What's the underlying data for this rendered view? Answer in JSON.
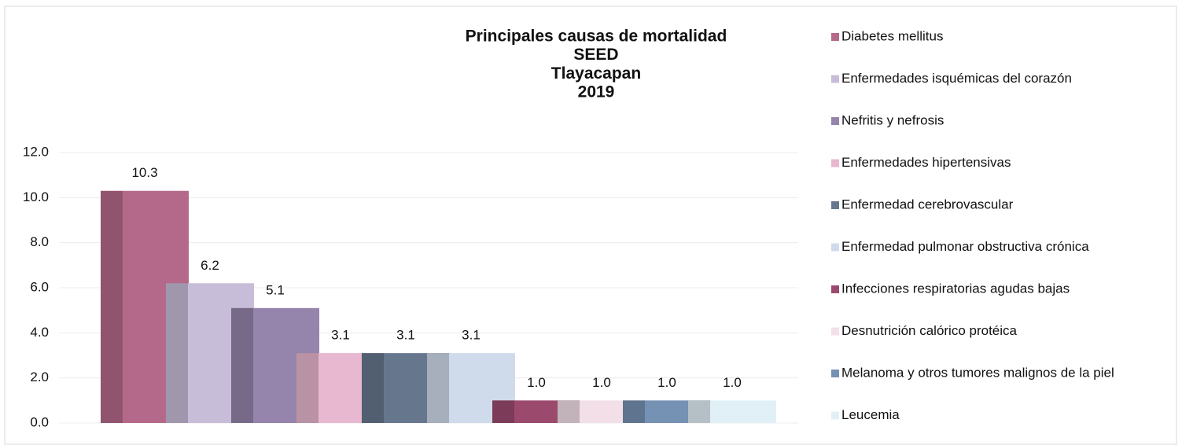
{
  "chart_data": {
    "type": "bar",
    "title": [
      "Principales causas de mortalidad",
      "SEED",
      "Tlayacapan",
      "2019"
    ],
    "series": [
      {
        "name": "Diabetes mellitus",
        "color": "#b5698a",
        "values": [
          10.3
        ],
        "value_labels": [
          "10.3"
        ]
      },
      {
        "name": "Enfermedades isquémicas del corazón",
        "color": "#c8bdd8",
        "values": [
          6.2
        ],
        "value_labels": [
          "6.2"
        ]
      },
      {
        "name": "Nefritis y nefrosis",
        "color": "#9584ab",
        "values": [
          5.1
        ],
        "value_labels": [
          "5.1"
        ]
      },
      {
        "name": "Enfermedades hipertensivas",
        "color": "#e8b7d0",
        "values": [
          3.1
        ],
        "value_labels": [
          "3.1"
        ]
      },
      {
        "name": "Enfermedad cerebrovascular",
        "color": "#66778d",
        "values": [
          3.1
        ],
        "value_labels": [
          "3.1"
        ]
      },
      {
        "name": "Enfermedad pulmonar obstructiva crónica",
        "color": "#cfdbea",
        "values": [
          3.1
        ],
        "value_labels": [
          "3.1"
        ]
      },
      {
        "name": "Infecciones respiratorias agudas bajas",
        "color": "#9b4a6e",
        "values": [
          1.0
        ],
        "value_labels": [
          "1.0"
        ]
      },
      {
        "name": "Desnutrición calórico protéica",
        "color": "#f2dfe8",
        "values": [
          1.0
        ],
        "value_labels": [
          "1.0"
        ]
      },
      {
        "name": "Melanoma y otros tumores malignos de la piel",
        "color": "#7591b3",
        "values": [
          1.0
        ],
        "value_labels": [
          "1.0"
        ]
      },
      {
        "name": "Leucemia",
        "color": "#e1f0f6",
        "values": [
          1.0
        ],
        "value_labels": [
          "1.0"
        ]
      }
    ],
    "ylim": [
      0,
      12
    ],
    "yticks": [
      {
        "value": 0,
        "label": "0.0"
      },
      {
        "value": 2,
        "label": "2.0"
      },
      {
        "value": 4,
        "label": "4.0"
      },
      {
        "value": 6,
        "label": "6.0"
      },
      {
        "value": 8,
        "label": "8.0"
      },
      {
        "value": 10,
        "label": "10.0"
      },
      {
        "value": 12,
        "label": "12.0"
      }
    ],
    "grid": true,
    "legend": "right"
  }
}
